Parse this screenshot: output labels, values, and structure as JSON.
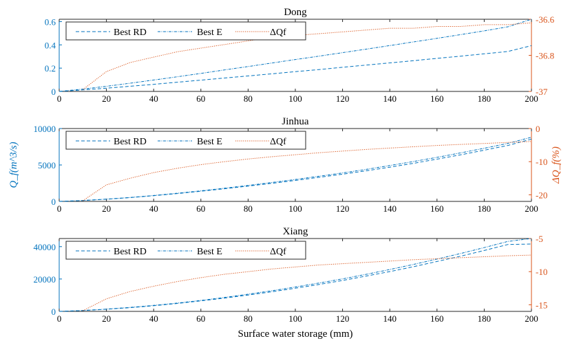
{
  "colors": {
    "left_axis": "#0072BD",
    "right_axis": "#D95319",
    "best_rd": "#0072BD",
    "best_e": "#0072BD",
    "delta_qf": "#D95319"
  },
  "chart_data": {
    "type": "line",
    "xlabel": "Surface water storage (mm)",
    "ylabel_left": "Q_f(m^3/s)",
    "ylabel_right": "ΔQ_f(%)",
    "xlim": [
      0,
      200
    ],
    "xticks": [
      0,
      20,
      40,
      60,
      80,
      100,
      120,
      140,
      160,
      180,
      200
    ],
    "grid": false,
    "legend": {
      "placement": "top-left",
      "entries": [
        "Best RD",
        "Best E",
        "ΔQf"
      ]
    },
    "panels": [
      {
        "title": "Dong",
        "ylim_left": [
          0,
          0.62
        ],
        "yticks_left": [
          0,
          0.2,
          0.4,
          0.6
        ],
        "ytick_labels_left": [
          "0",
          "0.2",
          "0.4",
          "0.6"
        ],
        "ylim_right": [
          -37,
          -36.6
        ],
        "yticks_right": [
          -37,
          -36.8,
          -36.6
        ],
        "ytick_labels_right": [
          "-37",
          "-36.8",
          "-36.6"
        ],
        "x": [
          0,
          10,
          20,
          30,
          40,
          50,
          60,
          70,
          80,
          90,
          100,
          110,
          120,
          130,
          140,
          150,
          160,
          170,
          180,
          190,
          200
        ],
        "series": [
          {
            "name": "Best RD",
            "axis": "left",
            "values": [
              0,
              0.013,
              0.028,
              0.044,
              0.061,
              0.079,
              0.097,
              0.115,
              0.133,
              0.151,
              0.17,
              0.188,
              0.207,
              0.226,
              0.245,
              0.264,
              0.284,
              0.303,
              0.323,
              0.343,
              0.393
            ]
          },
          {
            "name": "Best E",
            "axis": "left",
            "values": [
              0,
              0.02,
              0.044,
              0.07,
              0.098,
              0.126,
              0.155,
              0.185,
              0.214,
              0.244,
              0.274,
              0.303,
              0.333,
              0.363,
              0.394,
              0.425,
              0.456,
              0.488,
              0.52,
              0.555,
              0.62
            ]
          },
          {
            "name": "ΔQf",
            "axis": "right",
            "values": [
              null,
              -36.99,
              -36.89,
              -36.84,
              -36.81,
              -36.78,
              -36.76,
              -36.74,
              -36.72,
              -36.7,
              -36.69,
              -36.68,
              -36.67,
              -36.66,
              -36.65,
              -36.65,
              -36.64,
              -36.64,
              -36.63,
              -36.63,
              -36.62
            ]
          }
        ]
      },
      {
        "title": "Jinhua",
        "ylim_left": [
          0,
          10000
        ],
        "yticks_left": [
          0,
          5000,
          10000
        ],
        "ytick_labels_left": [
          "0",
          "5000",
          "10000"
        ],
        "ylim_right": [
          -22,
          0
        ],
        "yticks_right": [
          -20,
          -10,
          0
        ],
        "ytick_labels_right": [
          "-20",
          "-10",
          "0"
        ],
        "x": [
          0,
          10,
          20,
          30,
          40,
          50,
          60,
          70,
          80,
          90,
          100,
          110,
          120,
          130,
          140,
          150,
          160,
          170,
          180,
          190,
          200
        ],
        "series": [
          {
            "name": "Best RD",
            "axis": "left",
            "values": [
              0,
              120,
              300,
              520,
              780,
              1080,
              1400,
              1740,
              2100,
              2480,
              2880,
              3300,
              3740,
              4200,
              4700,
              5230,
              5800,
              6400,
              7030,
              7680,
              8550
            ]
          },
          {
            "name": "Best E",
            "axis": "left",
            "values": [
              0,
              125,
              310,
              540,
              810,
              1120,
              1450,
              1810,
              2190,
              2590,
              3010,
              3450,
              3910,
              4400,
              4920,
              5470,
              6050,
              6660,
              7290,
              7960,
              8800
            ]
          },
          {
            "name": "ΔQf",
            "axis": "right",
            "values": [
              null,
              -21.8,
              -17,
              -15,
              -13.3,
              -12,
              -10.9,
              -10,
              -9.2,
              -8.5,
              -7.9,
              -7.3,
              -6.8,
              -6.3,
              -5.9,
              -5.5,
              -5.1,
              -4.8,
              -4.5,
              -4.2,
              -3.9
            ]
          }
        ]
      },
      {
        "title": "Xiang",
        "ylim_left": [
          0,
          45000
        ],
        "yticks_left": [
          0,
          20000,
          40000
        ],
        "ytick_labels_left": [
          "0",
          "20000",
          "40000"
        ],
        "ylim_right": [
          -16,
          -5
        ],
        "yticks_right": [
          -15,
          -10,
          -5
        ],
        "ytick_labels_right": [
          "-15",
          "-10",
          "-5"
        ],
        "x": [
          0,
          10,
          20,
          30,
          40,
          50,
          60,
          70,
          80,
          90,
          100,
          110,
          120,
          130,
          140,
          150,
          160,
          170,
          180,
          190,
          200
        ],
        "series": [
          {
            "name": "Best RD",
            "axis": "left",
            "values": [
              0,
              500,
              1300,
              2300,
              3500,
              4900,
              6500,
              8200,
              10100,
              12100,
              14300,
              16600,
              19100,
              21800,
              24600,
              27600,
              30800,
              34100,
              37600,
              41300,
              41600
            ]
          },
          {
            "name": "Best E",
            "axis": "left",
            "values": [
              0,
              550,
              1400,
              2450,
              3700,
              5150,
              6800,
              8600,
              10600,
              12750,
              15050,
              17500,
              20100,
              22900,
              25850,
              29000,
              32300,
              35750,
              39400,
              43200,
              45000
            ]
          },
          {
            "name": "ΔQf",
            "axis": "right",
            "values": [
              null,
              -15.9,
              -14.1,
              -13,
              -12.2,
              -11.5,
              -10.9,
              -10.4,
              -10,
              -9.6,
              -9.3,
              -9,
              -8.8,
              -8.6,
              -8.4,
              -8.2,
              -8.05,
              -7.9,
              -7.75,
              -7.6,
              -7.5
            ]
          }
        ]
      }
    ]
  }
}
